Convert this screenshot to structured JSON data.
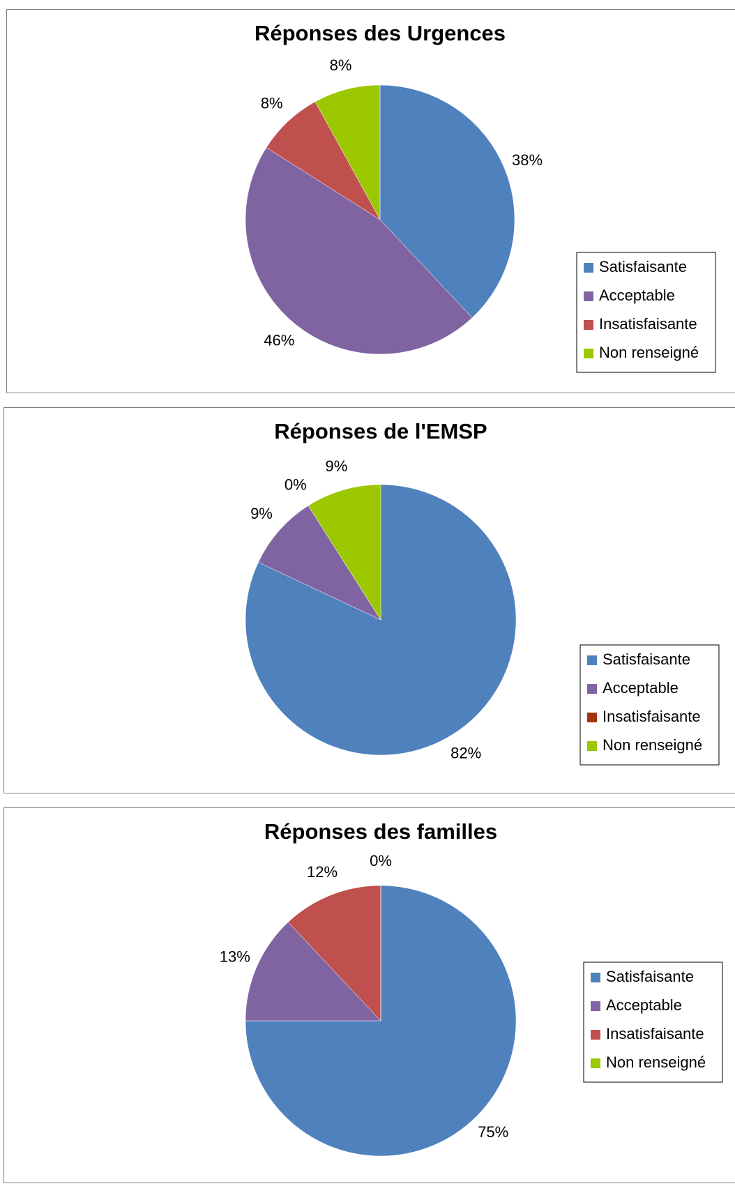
{
  "chart_data": [
    {
      "type": "pie",
      "title": "Réponses des Urgences",
      "categories": [
        "Satisfaisante",
        "Acceptable",
        "Insatisfaisante",
        "Non renseigné"
      ],
      "values": [
        38,
        46,
        8,
        8
      ],
      "value_labels": [
        "38%",
        "46%",
        "8%",
        "8%"
      ],
      "colors": [
        "#4f81bd",
        "#8064a2",
        "#c0504d",
        "#9bc800"
      ],
      "legend": "right"
    },
    {
      "type": "pie",
      "title": "Réponses de l'EMSP",
      "categories": [
        "Satisfaisante",
        "Acceptable",
        "Insatisfaisante",
        "Non renseigné"
      ],
      "values": [
        82,
        9,
        0,
        9
      ],
      "value_labels": [
        "82%",
        "9%",
        "0%",
        "9%"
      ],
      "colors": [
        "#4f81bd",
        "#8064a2",
        "#a5330f",
        "#9bc800"
      ],
      "legend": "right"
    },
    {
      "type": "pie",
      "title": "Réponses des familles",
      "categories": [
        "Satisfaisante",
        "Acceptable",
        "Insatisfaisante",
        "Non renseigné"
      ],
      "values": [
        75,
        13,
        12,
        0
      ],
      "value_labels": [
        "75%",
        "13%",
        "12%",
        "0%"
      ],
      "colors": [
        "#4f81bd",
        "#8064a2",
        "#c0504d",
        "#9bc800"
      ],
      "legend": "right"
    }
  ]
}
